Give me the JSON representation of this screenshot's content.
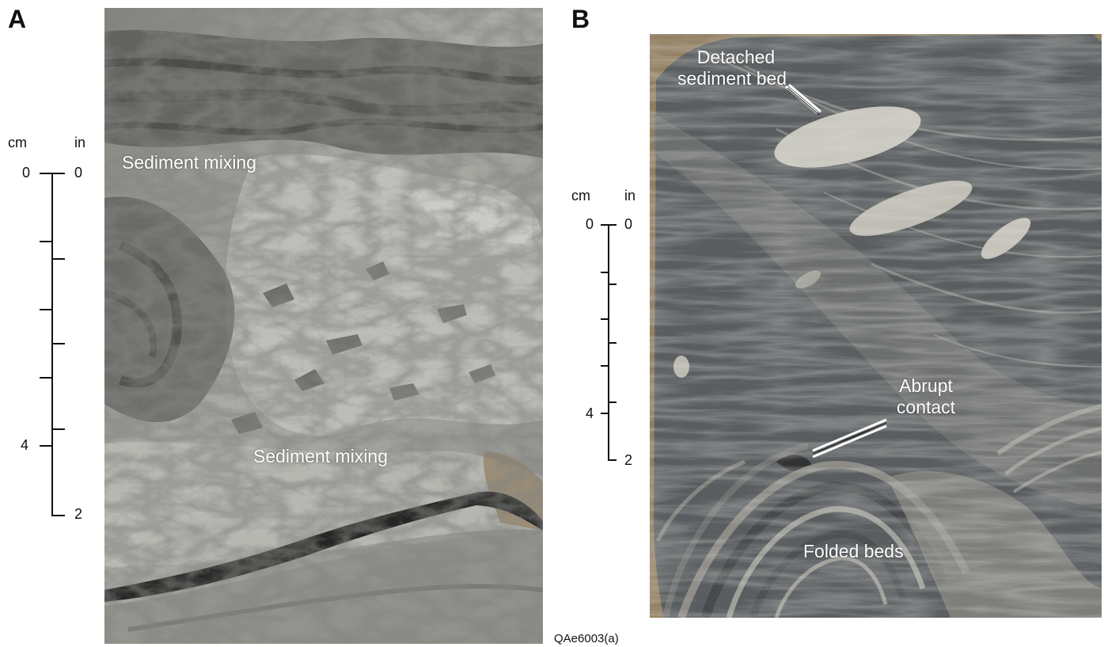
{
  "figure_id": "QAe6003(a)",
  "panels": [
    {
      "letter": "A",
      "labels": [
        "Sediment mixing",
        "Sediment mixing"
      ],
      "scale": {
        "left_unit": "cm",
        "right_unit": "in",
        "left_ticks": [
          "0",
          "4"
        ],
        "right_ticks": [
          "0",
          "2"
        ]
      }
    },
    {
      "letter": "B",
      "labels": {
        "detached": [
          "Detached",
          "sediment bed"
        ],
        "abrupt": [
          "Abrupt",
          "contact"
        ],
        "folded": "Folded beds"
      },
      "scale": {
        "left_unit": "cm",
        "right_unit": "in",
        "left_ticks": [
          "0",
          "4"
        ],
        "right_ticks": [
          "0",
          "2"
        ]
      }
    }
  ],
  "colors": {
    "rock_light": "#b9b9b4",
    "rock_mid": "#7d7d78",
    "rock_dark": "#3d3d3a",
    "rock_b_base": "#4b4f52",
    "rock_b_light": "#a8a89f",
    "background_tan": "#8a7552",
    "label_text": "#ffffff"
  }
}
